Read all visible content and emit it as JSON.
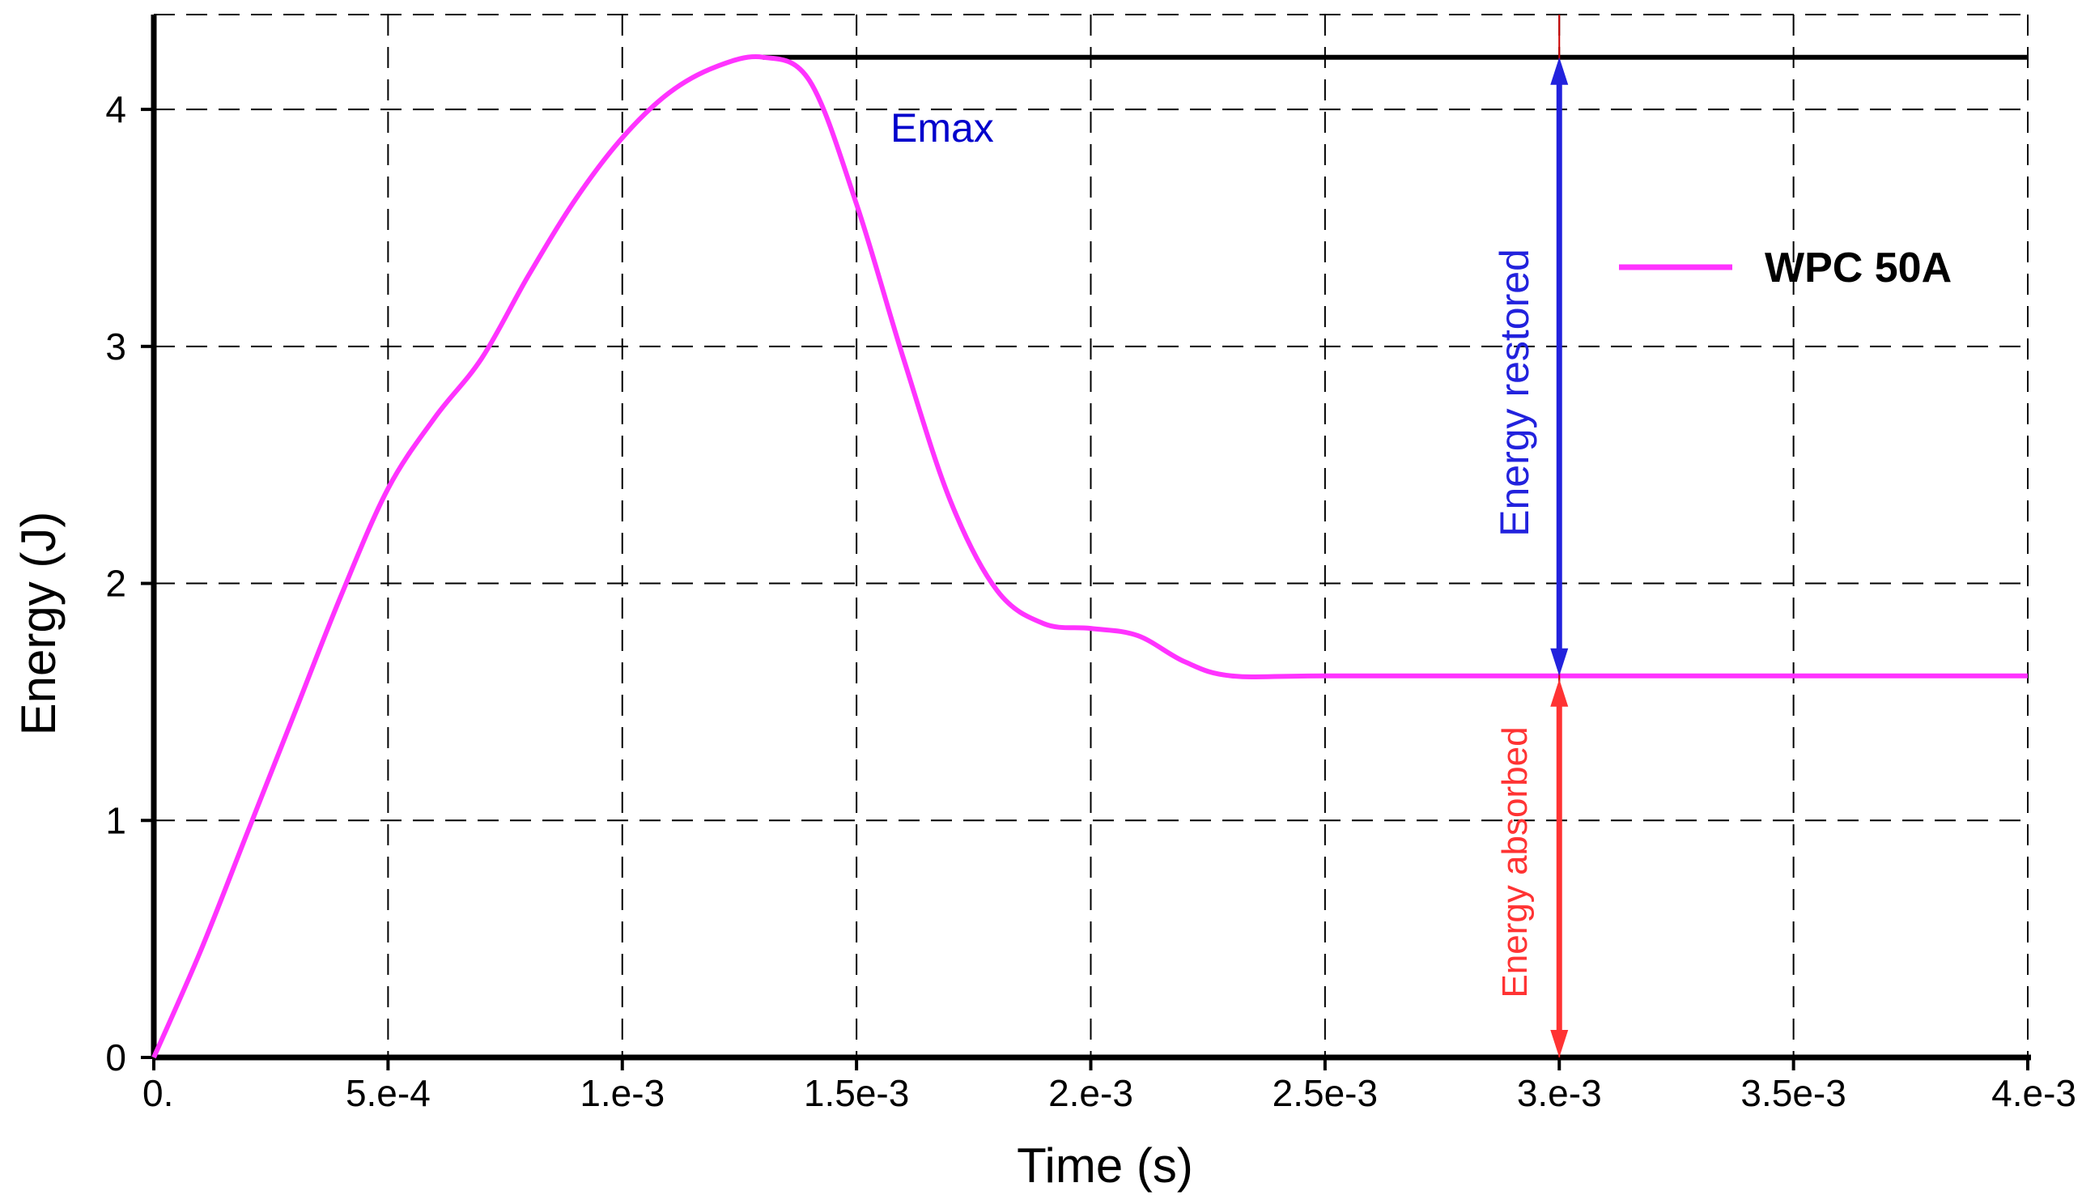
{
  "chart_data": {
    "type": "line",
    "title": "",
    "xlabel": "Time (s)",
    "ylabel": "Energy (J)",
    "xlim": [
      0,
      0.004
    ],
    "ylim": [
      0,
      4.4
    ],
    "grid": true,
    "x_ticks": [
      {
        "value": 0,
        "label": "0."
      },
      {
        "value": 0.0005,
        "label": "5.e-4"
      },
      {
        "value": 0.001,
        "label": "1.e-3"
      },
      {
        "value": 0.0015,
        "label": "1.5e-3"
      },
      {
        "value": 0.002,
        "label": "2.e-3"
      },
      {
        "value": 0.0025,
        "label": "2.5e-3"
      },
      {
        "value": 0.003,
        "label": "3.e-3"
      },
      {
        "value": 0.0035,
        "label": "3.5e-3"
      },
      {
        "value": 0.004,
        "label": "4.e-3"
      }
    ],
    "y_ticks": [
      {
        "value": 0,
        "label": "0"
      },
      {
        "value": 1,
        "label": "1"
      },
      {
        "value": 2,
        "label": "2"
      },
      {
        "value": 3,
        "label": "3"
      },
      {
        "value": 4,
        "label": "4"
      }
    ],
    "legend_position": "right",
    "series": [
      {
        "name": "WPC 50A",
        "color": "#ff33ff",
        "x": [
          0,
          0.0001,
          0.0002,
          0.0003,
          0.0004,
          0.0005,
          0.0006,
          0.0007,
          0.0008,
          0.0009,
          0.001,
          0.0011,
          0.0012,
          0.0013,
          0.0014,
          0.0015,
          0.0016,
          0.0017,
          0.0018,
          0.0019,
          0.002,
          0.0021,
          0.0022,
          0.0023,
          0.0025,
          0.003,
          0.0035,
          0.004
        ],
        "y": [
          0,
          0.45,
          0.95,
          1.45,
          1.95,
          2.4,
          2.7,
          2.95,
          3.3,
          3.62,
          3.88,
          4.07,
          4.18,
          4.22,
          4.12,
          3.6,
          2.95,
          2.35,
          1.97,
          1.83,
          1.81,
          1.78,
          1.67,
          1.61,
          1.61,
          1.61,
          1.61,
          1.61
        ]
      }
    ],
    "annotations": {
      "emax_label": "Emax",
      "emax_value": 4.22,
      "emax_line_start_x": 0.0013,
      "emax_color": "#0000cc",
      "residual_value": 1.61,
      "arrow_x": 0.003,
      "restored_label": "Energy restored",
      "restored_color": "#2222dd",
      "absorbed_label": "Energy absorbed",
      "absorbed_color": "#ff3333"
    }
  }
}
